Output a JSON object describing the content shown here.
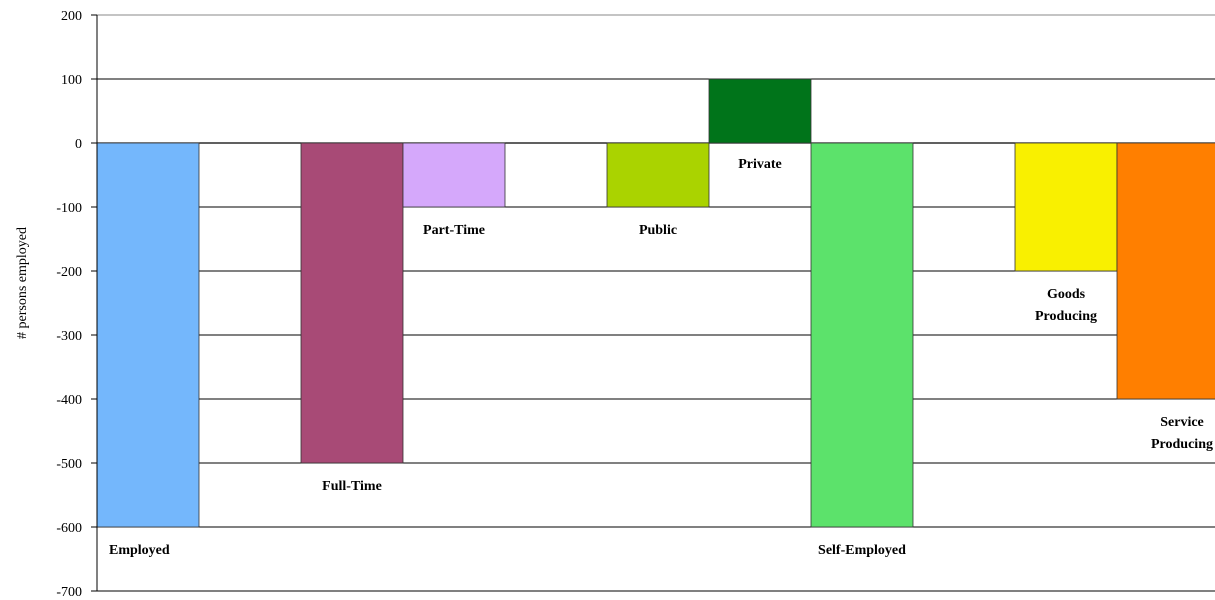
{
  "chart_data": {
    "type": "bar",
    "title": "",
    "xlabel": "",
    "ylabel": "# persons employed",
    "ylim": [
      -700,
      200
    ],
    "yticks": [
      200,
      100,
      0,
      -100,
      -200,
      -300,
      -400,
      -500,
      -600,
      -700
    ],
    "grid": true,
    "legend": "none",
    "categories": [
      "Employed",
      "Full-Time",
      "Part-Time",
      "Public",
      "Private",
      "Self-Employed",
      "Goods Producing",
      "Service Producing"
    ],
    "values": [
      -600,
      -500,
      -100,
      -100,
      100,
      -600,
      -200,
      -400
    ],
    "colors": [
      "#74b7fc",
      "#a84a76",
      "#d5a8fb",
      "#aad300",
      "#00741a",
      "#5ce26b",
      "#f9f000",
      "#ff7f00"
    ]
  }
}
